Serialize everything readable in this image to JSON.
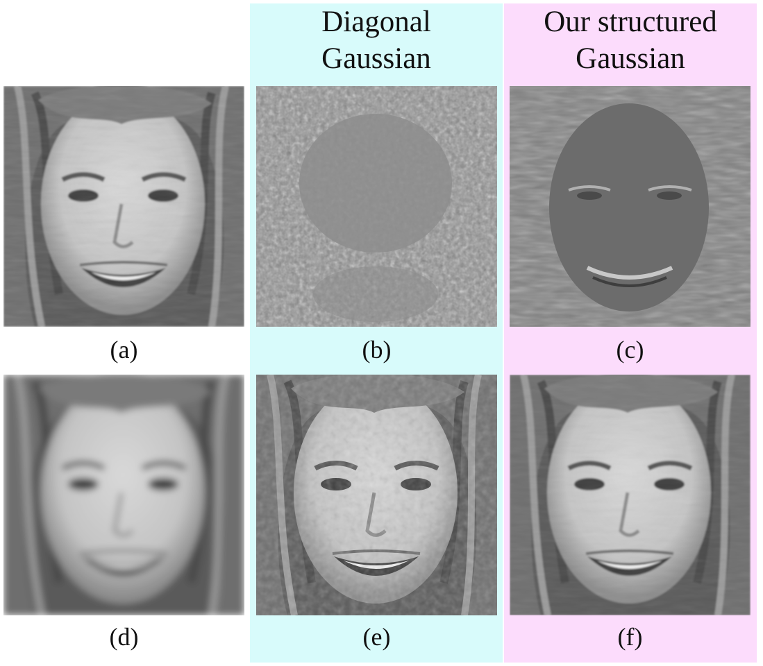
{
  "column_headers": {
    "b": [
      "Diagonal",
      "Gaussian"
    ],
    "c": [
      "Our structured",
      "Gaussian"
    ]
  },
  "panels": [
    {
      "label": "(a)",
      "description": "original face"
    },
    {
      "label": "(b)",
      "description": "residual map, diagonal Gaussian"
    },
    {
      "label": "(c)",
      "description": "residual map, structured Gaussian"
    },
    {
      "label": "(d)",
      "description": "blurred face"
    },
    {
      "label": "(e)",
      "description": "reconstruction, diagonal Gaussian"
    },
    {
      "label": "(f)",
      "description": "reconstruction, structured Gaussian"
    }
  ],
  "colors": {
    "diagonal_column_bg": "#d8fbfb",
    "structured_column_bg": "#fcdcfc"
  }
}
